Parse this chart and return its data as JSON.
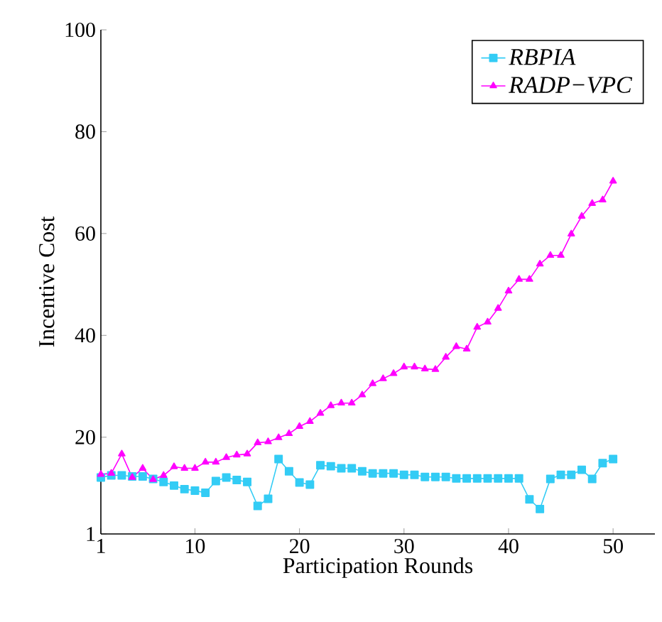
{
  "chart_data": {
    "type": "line",
    "xlabel": "Participation Rounds",
    "ylabel": "Incentive Cost",
    "x": [
      1,
      2,
      3,
      4,
      5,
      6,
      7,
      8,
      9,
      10,
      11,
      12,
      13,
      14,
      15,
      16,
      17,
      18,
      19,
      20,
      21,
      22,
      23,
      24,
      25,
      26,
      27,
      28,
      29,
      30,
      31,
      32,
      33,
      34,
      35,
      36,
      37,
      38,
      39,
      40,
      41,
      42,
      43,
      44,
      45,
      46,
      47,
      48,
      49,
      50
    ],
    "xlim": [
      1,
      54
    ],
    "xticks": [
      1,
      10,
      20,
      30,
      40,
      50
    ],
    "ylim": [
      1,
      100
    ],
    "yticks": [
      1,
      20,
      40,
      60,
      80,
      100
    ],
    "legend": "top right",
    "series": [
      {
        "name": "RBPIA",
        "color": "#33ccf5",
        "marker": "square",
        "values": [
          12.1,
          12.5,
          12.5,
          12.3,
          12.3,
          11.8,
          11.2,
          10.5,
          9.8,
          9.5,
          9.1,
          11.4,
          12.1,
          11.6,
          11.2,
          6.5,
          7.9,
          15.7,
          13.3,
          11.1,
          10.7,
          14.5,
          14.3,
          13.9,
          13.9,
          13.3,
          12.9,
          12.9,
          12.9,
          12.6,
          12.6,
          12.2,
          12.2,
          12.2,
          11.9,
          11.9,
          11.9,
          11.9,
          11.9,
          11.9,
          11.9,
          7.8,
          5.9,
          11.8,
          12.6,
          12.6,
          13.6,
          11.8,
          14.9,
          15.7
        ]
      },
      {
        "name": "RADP−VPC",
        "color": "#ff00ff",
        "marker": "triangle",
        "values": [
          12.7,
          12.9,
          16.7,
          12.1,
          13.9,
          11.7,
          12.5,
          14.2,
          13.9,
          13.9,
          15.1,
          15.1,
          16.0,
          16.5,
          16.7,
          18.9,
          19.1,
          19.9,
          20.7,
          22.1,
          23.1,
          24.7,
          26.2,
          26.7,
          26.7,
          28.3,
          30.5,
          31.5,
          32.5,
          33.8,
          33.8,
          33.4,
          33.3,
          35.7,
          37.8,
          37.3,
          41.6,
          42.6,
          45.3,
          48.7,
          51.0,
          51.0,
          54.0,
          55.7,
          55.7,
          59.9,
          63.4,
          65.9,
          66.6,
          70.3
        ]
      }
    ]
  }
}
